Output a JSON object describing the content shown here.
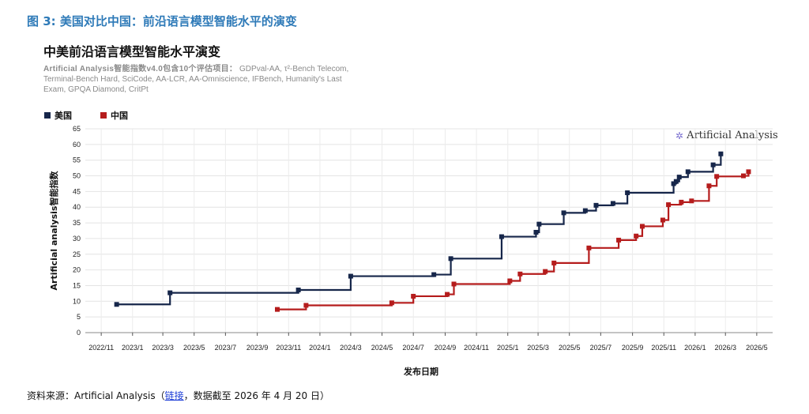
{
  "figure_caption": "图 3: 美国对比中国：前沿语言模型智能水平的演变",
  "source": {
    "prefix": "资料来源：Artificial Analysis（",
    "link_text": "链接",
    "suffix": "，数据截至 2026 年 4 月 20 日）"
  },
  "watermark": {
    "icon": "sparkle-icon",
    "text": "Artificial Analysis"
  },
  "chart_data": {
    "type": "line",
    "step": true,
    "title": "中美前沿语言模型智能水平演变",
    "subtitle_lead": "Artificial Analysis智能指数v4.0包含10个评估项目：",
    "subtitle_rest": "GDPval-AA, τ²-Bench Telecom, Terminal-Bench Hard, SciCode, AA-LCR, AA-Omniscience, IFBench, Humanity's Last Exam, GPQA Diamond, CritPt",
    "xlabel": "发布日期",
    "ylabel": "Artificial analysis智能指数",
    "x_range": [
      "2022-10-01",
      "2026-06-01"
    ],
    "ylim": [
      0,
      65
    ],
    "yticks": [
      0,
      5,
      10,
      15,
      20,
      25,
      30,
      35,
      40,
      45,
      50,
      55,
      60,
      65
    ],
    "xticks": [
      "2022/11",
      "2023/1",
      "2023/3",
      "2023/5",
      "2023/7",
      "2023/9",
      "2023/11",
      "2024/1",
      "2024/3",
      "2024/5",
      "2024/7",
      "2024/9",
      "2024/11",
      "2025/1",
      "2025/3",
      "2025/5",
      "2025/7",
      "2025/9",
      "2025/11",
      "2026/1",
      "2026/3",
      "2026/5"
    ],
    "grid": true,
    "legend_position": "top-left",
    "series": [
      {
        "name": "美国",
        "color": "#16264a",
        "points": [
          [
            "2022-12-01",
            9
          ],
          [
            "2023-03-15",
            12.7
          ],
          [
            "2023-11-20",
            13.6
          ],
          [
            "2024-03-01",
            18
          ],
          [
            "2024-08-10",
            18.5
          ],
          [
            "2024-09-12",
            23.6
          ],
          [
            "2024-12-20",
            30.6
          ],
          [
            "2025-02-25",
            32
          ],
          [
            "2025-03-03",
            34.6
          ],
          [
            "2025-04-20",
            38.2
          ],
          [
            "2025-06-01",
            38.9
          ],
          [
            "2025-06-22",
            40.6
          ],
          [
            "2025-07-25",
            41.2
          ],
          [
            "2025-08-22",
            44.6
          ],
          [
            "2025-11-20",
            47.5
          ],
          [
            "2025-11-25",
            48.2
          ],
          [
            "2025-12-01",
            49.6
          ],
          [
            "2025-12-18",
            51.3
          ],
          [
            "2026-02-05",
            53.5
          ],
          [
            "2026-02-20",
            57
          ]
        ]
      },
      {
        "name": "中国",
        "color": "#b51c1c",
        "points": [
          [
            "2023-10-10",
            7.4
          ],
          [
            "2023-12-05",
            8.7
          ],
          [
            "2024-05-20",
            9.5
          ],
          [
            "2024-07-01",
            11.6
          ],
          [
            "2024-09-05",
            12.2
          ],
          [
            "2024-09-18",
            15.5
          ],
          [
            "2025-01-05",
            16.5
          ],
          [
            "2025-01-25",
            18.7
          ],
          [
            "2025-03-15",
            19.5
          ],
          [
            "2025-04-01",
            22.2
          ],
          [
            "2025-06-08",
            27
          ],
          [
            "2025-08-05",
            29.5
          ],
          [
            "2025-09-08",
            30.8
          ],
          [
            "2025-09-20",
            33.9
          ],
          [
            "2025-10-30",
            35.9
          ],
          [
            "2025-11-10",
            40.8
          ],
          [
            "2025-12-05",
            41.6
          ],
          [
            "2025-12-25",
            42
          ],
          [
            "2026-01-28",
            46.8
          ],
          [
            "2026-02-12",
            49.8
          ],
          [
            "2026-04-05",
            50
          ],
          [
            "2026-04-15",
            51.3
          ]
        ]
      }
    ]
  }
}
